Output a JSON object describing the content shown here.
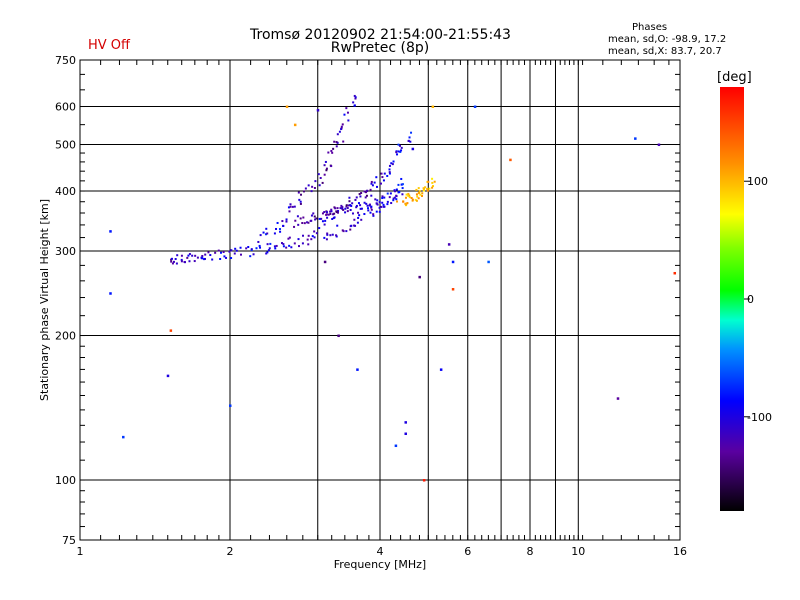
{
  "header": {
    "title_line1": "Tromsø 20120902 21:54:00-21:55:43",
    "title_line2": "RwPretec (8p)",
    "hv_status": "HV Off",
    "phases_heading": "Phases",
    "phases_o": "mean, sd,O: -98.9, 17.2",
    "phases_x": "mean, sd,X: 83.7, 20.7"
  },
  "colors": {
    "hv_status": "#d40000",
    "grid": "#000000"
  },
  "colorbar": {
    "unit": "[deg]",
    "range": [
      -180,
      180
    ],
    "ticks": [
      "100",
      "0",
      "-100"
    ],
    "tick_values": [
      100,
      0,
      -100
    ]
  },
  "chart_data": {
    "type": "scatter",
    "xlabel": "Frequency [MHz]",
    "ylabel": "Stationary phase Virtual Height [km]",
    "xscale": "log",
    "yscale": "log",
    "xlim": [
      1,
      16
    ],
    "ylim": [
      75,
      750
    ],
    "grid": true,
    "x_ticks": [
      "1",
      "2",
      "4",
      "6",
      "8",
      "10",
      "16"
    ],
    "x_tick_values": [
      1,
      2,
      4,
      6,
      8,
      10,
      16
    ],
    "x_grid_values": [
      1,
      2,
      3,
      4,
      5,
      6,
      7,
      8,
      9,
      10,
      16
    ],
    "y_ticks": [
      "75",
      "100",
      "200",
      "300",
      "400",
      "500",
      "600",
      "750"
    ],
    "y_tick_values": [
      75,
      100,
      200,
      300,
      400,
      500,
      600,
      750
    ],
    "y_grid_values": [
      100,
      200,
      300,
      400,
      500,
      600
    ],
    "traces": [
      {
        "x": [
          1.5,
          1.6,
          1.7,
          1.8,
          1.95,
          2.1,
          2.3,
          2.5,
          2.7,
          2.95,
          3.2,
          3.5,
          3.8,
          4.1,
          4.4
        ],
        "y": [
          285,
          290,
          292,
          293,
          295,
          298,
          303,
          308,
          313,
          320,
          328,
          340,
          355,
          375,
          400
        ],
        "phase": [
          -120,
          -115,
          -110,
          -105,
          -100,
          -100,
          -95,
          -100,
          -105,
          -110,
          -115,
          -120,
          -110,
          -105,
          -100
        ]
      },
      {
        "x": [
          2.3,
          2.5,
          2.7,
          2.9,
          3.1,
          3.3,
          3.5,
          3.7,
          3.9,
          4.1,
          4.3,
          4.5
        ],
        "y": [
          320,
          335,
          345,
          352,
          358,
          362,
          366,
          370,
          375,
          382,
          395,
          420
        ],
        "phase": [
          -90,
          -95,
          -110,
          -130,
          -135,
          -120,
          -115,
          -110,
          -105,
          -100,
          -95,
          -90
        ]
      },
      {
        "x": [
          2.6,
          2.8,
          3.0,
          3.15,
          3.3,
          3.45,
          3.6
        ],
        "y": [
          360,
          390,
          420,
          460,
          510,
          570,
          640
        ],
        "phase": [
          -110,
          -120,
          -130,
          -125,
          -115,
          -110,
          -105
        ]
      },
      {
        "x": [
          3.0,
          3.2,
          3.4,
          3.6,
          3.8,
          4.0,
          4.2,
          4.4,
          4.6
        ],
        "y": [
          340,
          355,
          370,
          385,
          400,
          420,
          450,
          490,
          520
        ],
        "phase": [
          -100,
          -110,
          -125,
          -130,
          -120,
          -110,
          -100,
          -95,
          -90
        ]
      },
      {
        "x": [
          4.4,
          4.55,
          4.7,
          4.85,
          5.0,
          5.1
        ],
        "y": [
          380,
          385,
          392,
          398,
          405,
          420
        ],
        "phase": [
          110,
          105,
          100,
          100,
          95,
          90
        ]
      }
    ],
    "scatter": {
      "x": [
        1.15,
        1.15,
        1.22,
        1.5,
        1.52,
        2.0,
        2.6,
        2.7,
        3.0,
        3.1,
        3.6,
        4.3,
        4.5,
        4.5,
        4.65,
        4.8,
        4.9,
        5.1,
        5.5,
        5.6,
        5.6,
        6.2,
        6.6,
        7.3,
        12.0,
        13.0,
        14.5,
        15.6,
        5.3,
        3.3
      ],
      "y": [
        330,
        245,
        123,
        165,
        205,
        143,
        600,
        550,
        590,
        285,
        170,
        118,
        125,
        132,
        490,
        265,
        100,
        600,
        310,
        285,
        250,
        600,
        285,
        465,
        148,
        515,
        500,
        270,
        170,
        200
      ],
      "phase": [
        -80,
        -80,
        -70,
        -100,
        150,
        -70,
        110,
        110,
        -110,
        -140,
        -80,
        -70,
        -100,
        -100,
        -100,
        -140,
        170,
        100,
        -120,
        -80,
        150,
        -70,
        -60,
        140,
        -130,
        -70,
        -120,
        160,
        -90,
        -140
      ]
    }
  }
}
